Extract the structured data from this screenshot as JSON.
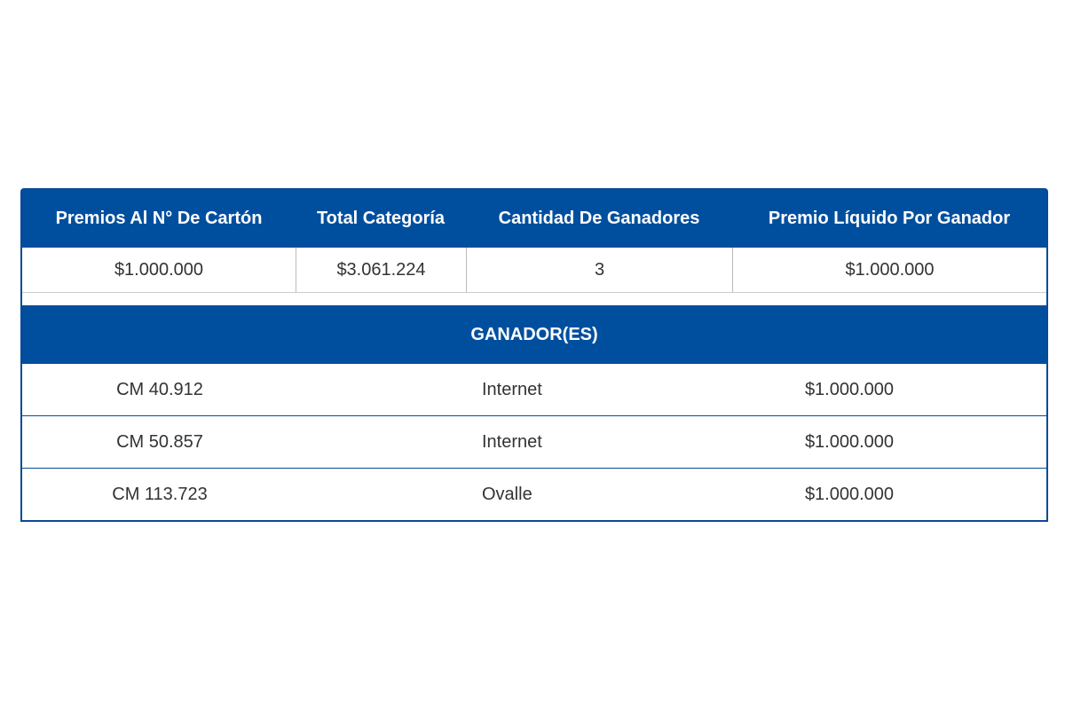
{
  "table": {
    "headers": [
      "Premios Al N° De Cartón",
      "Total Categoría",
      "Cantidad De Ganadores",
      "Premio Líquido Por Ganador"
    ],
    "summary": [
      "$1.000.000",
      "$3.061.224",
      "3",
      "$1.000.000"
    ],
    "winners_title": "GANADOR(ES)",
    "winners": [
      [
        "CM 40.912",
        "Internet",
        "$1.000.000"
      ],
      [
        "CM 50.857",
        "Internet",
        "$1.000.000"
      ],
      [
        "CM 113.723",
        "Ovalle",
        "$1.000.000"
      ]
    ]
  }
}
